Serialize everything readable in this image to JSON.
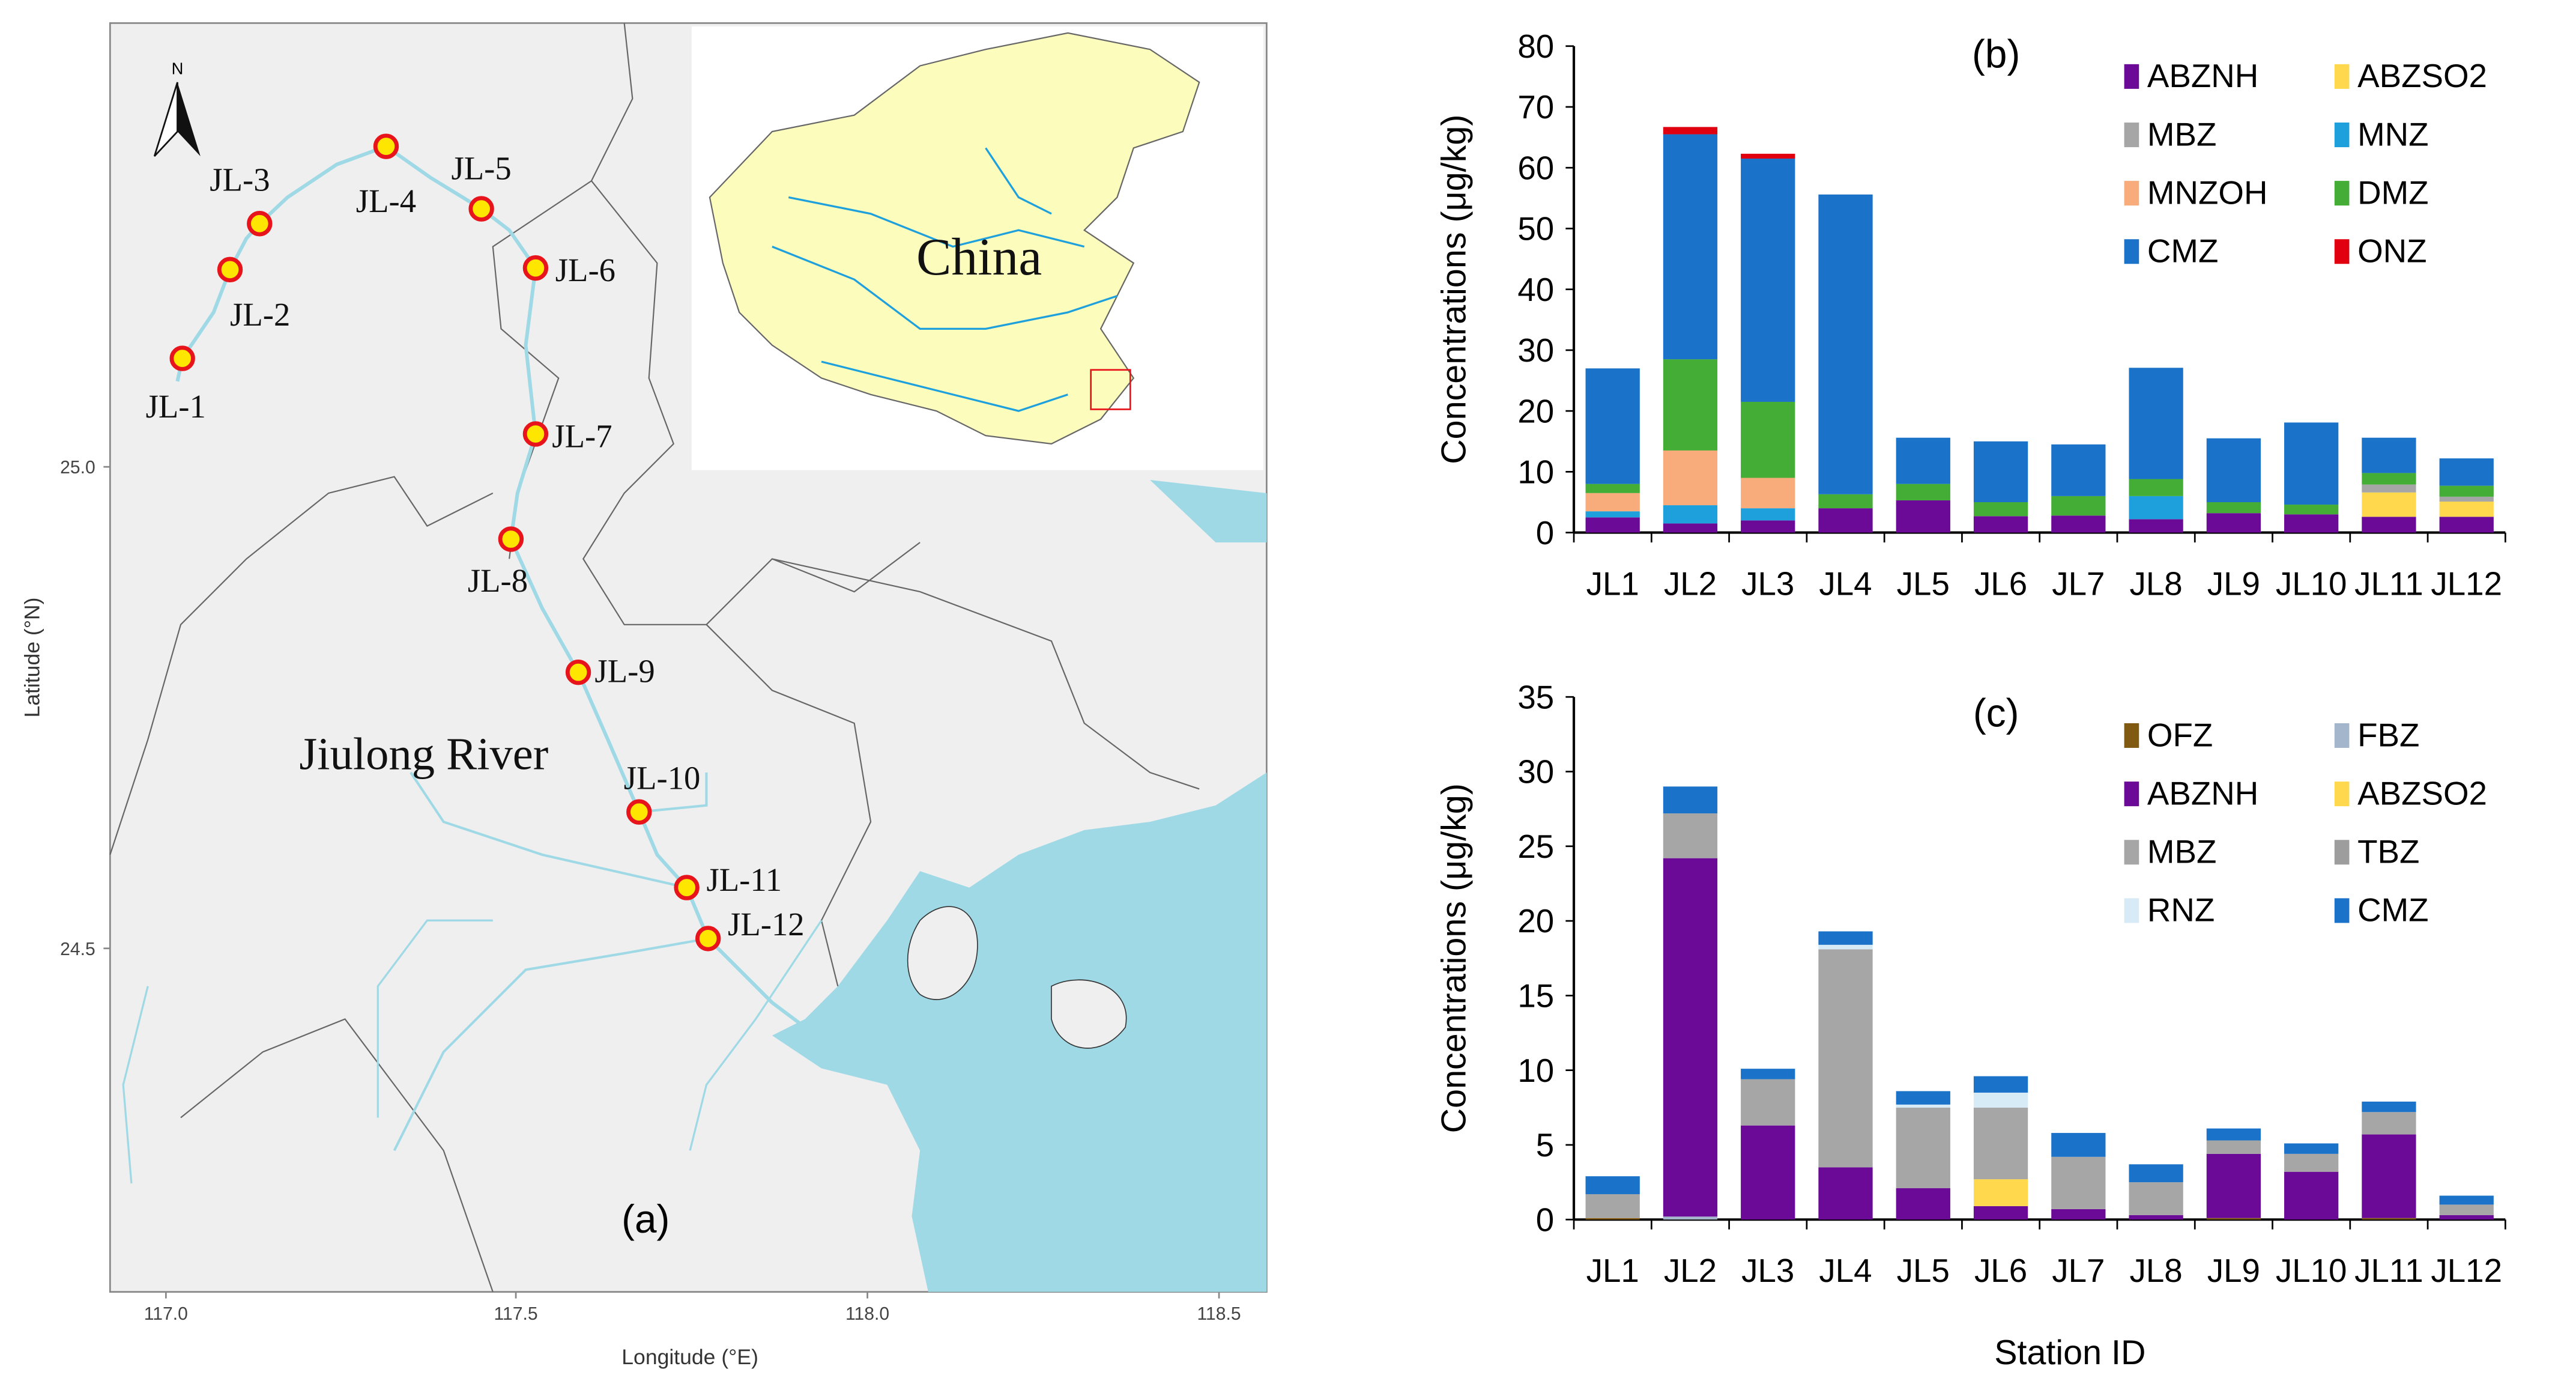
{
  "map": {
    "panel_label": "(a)",
    "north_label": "N",
    "inset_label": "China",
    "river_label": "Jiulong River",
    "xlabel": "Longitude (°E)",
    "ylabel": "Latitude (°N)",
    "x_ticks": [
      "117.0",
      "117.5",
      "118.0",
      "118.5"
    ],
    "y_ticks": [
      "25.0",
      "24.5"
    ],
    "stations": [
      "JL-1",
      "JL-2",
      "JL-3",
      "JL-4",
      "JL-5",
      "JL-6",
      "JL-7",
      "JL-8",
      "JL-9",
      "JL-10",
      "JL-11",
      "JL-12"
    ],
    "colors": {
      "land": "#efefef",
      "water": "#9fd9e6",
      "china_land": "#fcfcbd",
      "marker_fill": "#ffe600",
      "marker_ring": "#e8141b"
    }
  },
  "chart_data": [
    {
      "type": "bar",
      "stacked": true,
      "panel_label": "(b)",
      "ylabel": "Concentrations (μg/kg)",
      "xlabel": "",
      "ylim": [
        0,
        80
      ],
      "y_ticks": [
        0,
        10,
        20,
        30,
        40,
        50,
        60,
        70,
        80
      ],
      "legend_position": "top-right",
      "categories": [
        "JL1",
        "JL2",
        "JL3",
        "JL4",
        "JL5",
        "JL6",
        "JL7",
        "JL8",
        "JL9",
        "JL10",
        "JL11",
        "JL12"
      ],
      "series": [
        {
          "name": "ABZNH",
          "color": "#6a0a96",
          "values": [
            2.5,
            1.5,
            2,
            4,
            5.3,
            2.7,
            2.8,
            2.2,
            3.2,
            3,
            2.6,
            2.6
          ]
        },
        {
          "name": "ABZSO2",
          "color": "#ffd84d",
          "values": [
            0,
            0,
            0,
            0,
            0,
            0,
            0,
            0,
            0,
            0,
            4,
            2.5
          ]
        },
        {
          "name": "MBZ",
          "color": "#a6a6a6",
          "values": [
            0,
            0,
            0,
            0,
            0,
            0,
            0,
            0,
            0,
            0,
            1.3,
            0.8
          ]
        },
        {
          "name": "MNZ",
          "color": "#1ea0dc",
          "values": [
            1,
            3,
            2,
            0,
            0,
            0,
            0,
            3.8,
            0,
            0,
            0,
            0
          ]
        },
        {
          "name": "MNZOH",
          "color": "#f8ac7c",
          "values": [
            3,
            9,
            5,
            0,
            0,
            0,
            0,
            0,
            0,
            0,
            0,
            0
          ]
        },
        {
          "name": "DMZ",
          "color": "#43ad36",
          "values": [
            1.5,
            15,
            12.5,
            2.3,
            2.7,
            2.3,
            3.2,
            2.8,
            1.8,
            1.6,
            1.9,
            1.8
          ]
        },
        {
          "name": "CMZ",
          "color": "#1a72c9",
          "values": [
            19,
            37,
            40,
            49.3,
            7.6,
            10,
            8.5,
            18.3,
            10.5,
            13.5,
            5.8,
            4.5
          ]
        },
        {
          "name": "ONZ",
          "color": "#e00010",
          "values": [
            0,
            1.2,
            0.8,
            0,
            0,
            0,
            0,
            0,
            0,
            0,
            0,
            0
          ]
        }
      ]
    },
    {
      "type": "bar",
      "stacked": true,
      "panel_label": "(c)",
      "ylabel": "Concentrations (μg/kg)",
      "xlabel": "Station ID",
      "ylim": [
        0,
        35
      ],
      "y_ticks": [
        0,
        5,
        10,
        15,
        20,
        25,
        30,
        35
      ],
      "legend_position": "top-right",
      "categories": [
        "JL1",
        "JL2",
        "JL3",
        "JL4",
        "JL5",
        "JL6",
        "JL7",
        "JL8",
        "JL9",
        "JL10",
        "JL11",
        "JL12"
      ],
      "series": [
        {
          "name": "OFZ",
          "color": "#7f5a10",
          "values": [
            0.1,
            0,
            0,
            0,
            0,
            0,
            0,
            0,
            0.1,
            0,
            0.1,
            0
          ]
        },
        {
          "name": "FBZ",
          "color": "#a4b6cc",
          "values": [
            0,
            0.2,
            0,
            0,
            0,
            0,
            0,
            0,
            0,
            0,
            0,
            0
          ]
        },
        {
          "name": "ABZNH",
          "color": "#6a0a96",
          "values": [
            0,
            24,
            6.3,
            3.5,
            2.1,
            0.9,
            0.7,
            0.3,
            4.3,
            3.2,
            5.6,
            0.3
          ]
        },
        {
          "name": "ABZSO2",
          "color": "#ffd84d",
          "values": [
            0,
            0,
            0,
            0,
            0,
            1.8,
            0,
            0,
            0,
            0,
            0,
            0
          ]
        },
        {
          "name": "MBZ",
          "color": "#a6a6a6",
          "values": [
            1.6,
            3,
            3.1,
            14.6,
            5.4,
            4.8,
            3.5,
            2.2,
            0.9,
            1.2,
            1.5,
            0.7
          ]
        },
        {
          "name": "TBZ",
          "color": "#9d9d9d",
          "values": [
            0,
            0,
            0,
            0,
            0,
            0,
            0,
            0,
            0,
            0,
            0,
            0
          ]
        },
        {
          "name": "RNZ",
          "color": "#d7ebf7",
          "values": [
            0,
            0,
            0,
            0.3,
            0.2,
            1,
            0,
            0,
            0,
            0,
            0,
            0
          ]
        },
        {
          "name": "CMZ",
          "color": "#1a72c9",
          "values": [
            1.2,
            1.8,
            0.7,
            0.9,
            0.9,
            1.1,
            1.6,
            1.2,
            0.8,
            0.7,
            0.7,
            0.6
          ]
        }
      ]
    }
  ]
}
